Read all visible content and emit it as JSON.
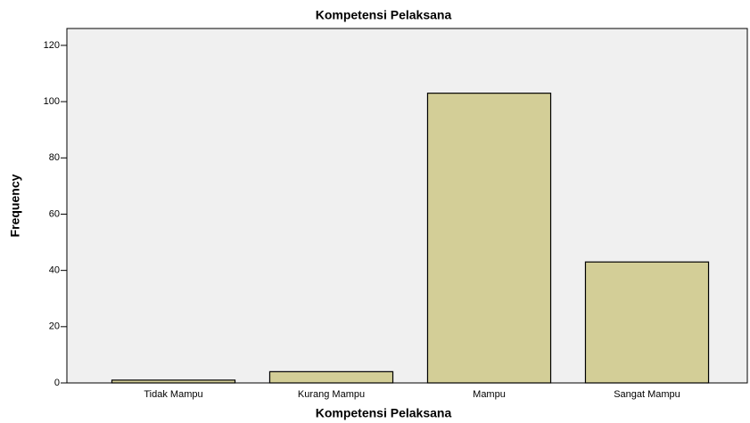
{
  "chart_data": {
    "type": "bar",
    "title": "Kompetensi Pelaksana",
    "x_label": "Kompetensi Pelaksana",
    "y_label": "Frequency",
    "categories": [
      "Tidak Mampu",
      "Kurang Mampu",
      "Mampu",
      "Sangat Mampu"
    ],
    "values": [
      1,
      4,
      103,
      43
    ],
    "color": "#d3ce97",
    "ylim": [
      0,
      126
    ],
    "yticks": [
      0,
      20,
      40,
      60,
      80,
      100,
      120
    ],
    "grid": false
  }
}
